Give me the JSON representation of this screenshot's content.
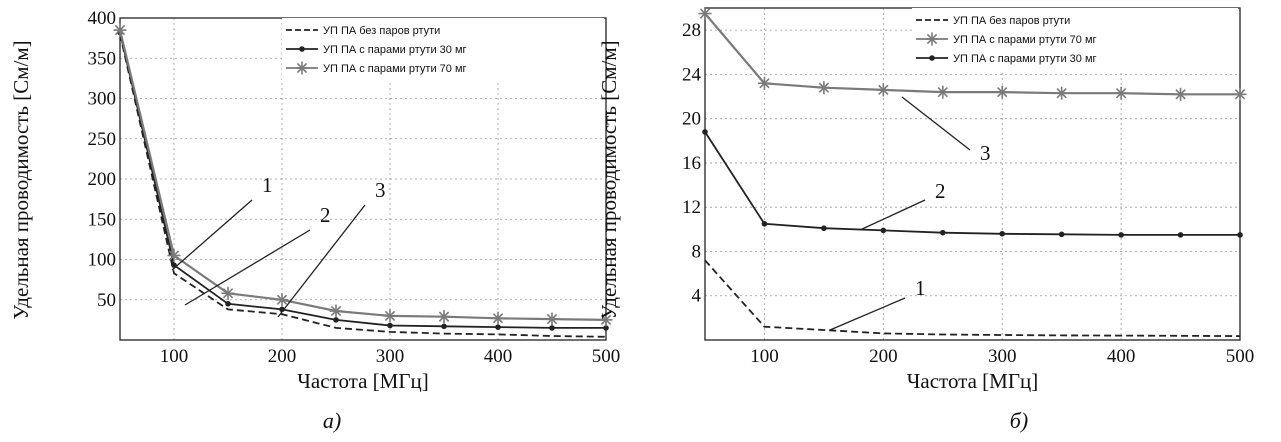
{
  "chart_data": [
    {
      "type": "line",
      "panel_label": "а)",
      "xlabel": "Частота [МГц]",
      "ylabel": "Удельная проводимость [См/м]",
      "xlim": [
        50,
        500
      ],
      "ylim": [
        0,
        400
      ],
      "xticks": [
        100,
        200,
        300,
        400,
        500
      ],
      "yticks": [
        50,
        100,
        150,
        200,
        250,
        300,
        350,
        400
      ],
      "grid": true,
      "legend_position": "top-right",
      "x": [
        50,
        100,
        150,
        200,
        250,
        300,
        350,
        400,
        450,
        500
      ],
      "series": [
        {
          "name": "УП ПА без паров ртути",
          "style": "dashed",
          "marker": "none",
          "curve_label": "1",
          "values": [
            380,
            83,
            38,
            32,
            15,
            10,
            8,
            7,
            5,
            4
          ]
        },
        {
          "name": "УП ПА с парами ртути 30 мг",
          "style": "solid",
          "marker": "dot",
          "curve_label": "2",
          "values": [
            382,
            93,
            45,
            38,
            25,
            18,
            17,
            16,
            15,
            15
          ]
        },
        {
          "name": "УП ПА с парами ртути 70 мг",
          "style": "solid",
          "marker": "star",
          "curve_label": "3",
          "values": [
            385,
            105,
            58,
            50,
            36,
            30,
            29,
            27,
            26,
            25
          ]
        }
      ],
      "legend_order": [
        0,
        1,
        2
      ]
    },
    {
      "type": "line",
      "panel_label": "б)",
      "xlabel": "Частота [МГц]",
      "ylabel": "Удельная проводимость [См/м]",
      "xlim": [
        50,
        500
      ],
      "ylim": [
        0,
        30
      ],
      "xticks": [
        100,
        200,
        300,
        400,
        500
      ],
      "yticks": [
        4,
        8,
        12,
        16,
        20,
        24,
        28
      ],
      "grid": true,
      "legend_position": "top-right",
      "x": [
        50,
        100,
        150,
        200,
        250,
        300,
        350,
        400,
        450,
        500
      ],
      "series": [
        {
          "name": "УП ПА без паров ртути",
          "style": "dashed",
          "marker": "none",
          "curve_label": "1",
          "values": [
            7.2,
            1.2,
            0.9,
            0.6,
            0.5,
            0.45,
            0.42,
            0.4,
            0.38,
            0.35
          ]
        },
        {
          "name": "УП ПА с парами ртути 30 мг",
          "style": "solid",
          "marker": "dot",
          "curve_label": "2",
          "values": [
            18.8,
            10.5,
            10.1,
            9.9,
            9.7,
            9.6,
            9.55,
            9.5,
            9.5,
            9.5
          ]
        },
        {
          "name": "УП ПА с парами ртути 70 мг",
          "style": "solid",
          "marker": "star",
          "curve_label": "3",
          "values": [
            29.5,
            23.2,
            22.8,
            22.6,
            22.4,
            22.4,
            22.3,
            22.3,
            22.2,
            22.2
          ]
        }
      ],
      "legend_order": [
        0,
        2,
        1
      ]
    }
  ]
}
